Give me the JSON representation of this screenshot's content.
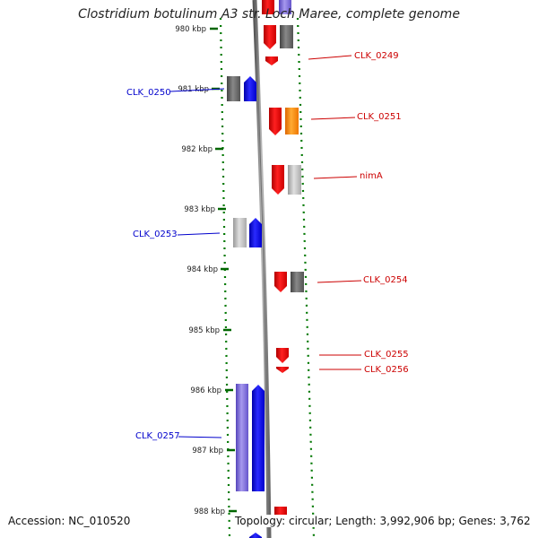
{
  "title": "Clostridium botulinum A3 str. Loch Maree, complete genome",
  "footer": {
    "accession": "Accession: NC_010520",
    "topology": "Topology: circular; Length: 3,992,906 bp; Genes: 3,762"
  },
  "ticks": [
    "980 kbp",
    "981 kbp",
    "982 kbp",
    "983 kbp",
    "984 kbp",
    "985 kbp",
    "986 kbp",
    "987 kbp",
    "988 kbp"
  ],
  "labels_left": [
    {
      "text": "CLK_0250",
      "color": "#0000cc"
    },
    {
      "text": "CLK_0253",
      "color": "#0000cc"
    },
    {
      "text": "CLK_0257",
      "color": "#0000cc"
    }
  ],
  "labels_right": [
    {
      "text": "CLK_0249",
      "color": "#cc0000"
    },
    {
      "text": "CLK_0251",
      "color": "#cc0000"
    },
    {
      "text": "nimA",
      "color": "#cc0000"
    },
    {
      "text": "CLK_0254",
      "color": "#cc0000"
    },
    {
      "text": "CLK_0255",
      "color": "#cc0000"
    },
    {
      "text": "CLK_0256",
      "color": "#cc0000"
    }
  ],
  "colors": {
    "forward_gene": "#0000ff",
    "reverse_gene": "#ee0000",
    "gene_gray": "#666666",
    "gene_lightgray": "#bbbbbb",
    "gene_orange": "#ff8800",
    "gene_lavender": "#7766dd",
    "ruler_green": "#007700",
    "backbone": "#888888"
  }
}
